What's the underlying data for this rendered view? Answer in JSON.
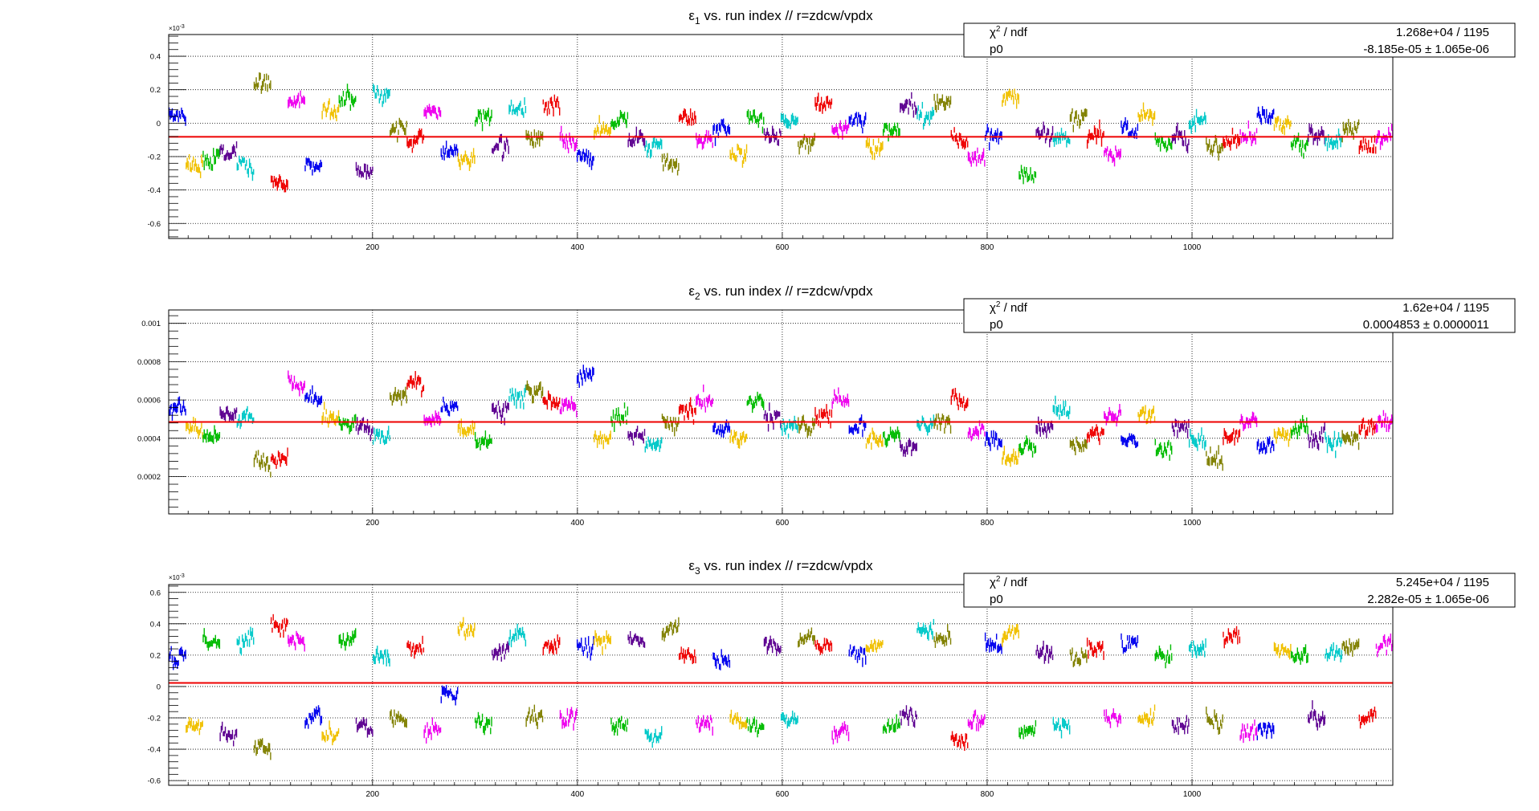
{
  "chart_data": [
    {
      "type": "scatter",
      "title_symbol": "ε",
      "title_sub": "1",
      "title_rest": " vs. run index // r=zdcw/vpdx",
      "xlim": [
        1,
        1196
      ],
      "ylim": [
        -0.00069,
        0.00053
      ],
      "y_exponent": "×10",
      "y_exponent_power": "-3",
      "x_ticks": [
        200,
        400,
        600,
        800,
        1000
      ],
      "x_tick_labels": [
        "200",
        "400",
        "600",
        "800",
        "1000"
      ],
      "y_ticks": [
        0.0004,
        0.0002,
        0,
        -0.0002,
        -0.0004,
        -0.0006
      ],
      "y_tick_labels": [
        "0.4",
        "0.2",
        "0",
        "-0.2",
        "-0.4",
        "-0.6"
      ],
      "fit_value": -8.185e-05,
      "stats": {
        "row1_label": "χ",
        "row1_label_sup": "2",
        "row1_label_rest": " / ndf",
        "row1_value": "1.268e+04 / 1195",
        "row2_label": "p0",
        "row2_value": "-8.185e-05 ± 1.065e-06"
      },
      "segment_means": [
        5e-05,
        -0.00025,
        -0.00022,
        -0.00018,
        -0.00026,
        0.00022,
        -0.00035,
        0.00012,
        -0.00025,
        8e-05,
        0.00015,
        -0.00028,
        0.00018,
        -5e-05,
        -0.00012,
        6e-05,
        -0.00018,
        -0.00022,
        2e-05,
        -0.00015,
        8e-05,
        -8e-05,
        0.0001,
        -0.0001,
        -0.0002,
        -5e-05,
        0.0,
        -0.00012,
        -0.00015,
        -0.00025,
        2e-05,
        -0.0001,
        -5e-05,
        -0.00018,
        4e-05,
        -8e-05,
        0.0,
        -0.00012,
        0.00012,
        -5e-05,
        2e-05,
        -0.00015,
        -2e-05,
        0.0001,
        6e-05,
        0.00012,
        -0.00012,
        -0.0002,
        -8e-05,
        0.00015,
        -0.0003,
        -5e-05,
        -0.0001,
        4e-05,
        -8e-05,
        -0.00018,
        -4e-05,
        6e-05,
        -0.0001,
        -8e-05,
        2e-05,
        -0.00014,
        -0.0001,
        -8e-05,
        4e-05,
        -2e-05,
        -0.00012,
        -6e-05,
        -0.0001,
        -6e-05,
        -0.00016,
        -8e-05
      ],
      "series_colors": [
        "#0000ee",
        "#f0c000",
        "#00bb00",
        "#5c0090",
        "#00c8c8",
        "#808000",
        "#ee0000",
        "#ee00ee"
      ]
    },
    {
      "type": "scatter",
      "title_symbol": "ε",
      "title_sub": "2",
      "title_rest": " vs. run index // r=zdcw/vpdx",
      "xlim": [
        1,
        1196
      ],
      "ylim": [
        5e-06,
        0.00107
      ],
      "y_exponent": "",
      "y_exponent_power": "",
      "x_ticks": [
        200,
        400,
        600,
        800,
        1000
      ],
      "x_tick_labels": [
        "200",
        "400",
        "600",
        "800",
        "1000"
      ],
      "y_ticks": [
        0.001,
        0.0008,
        0.0006,
        0.0004,
        0.0002
      ],
      "y_tick_labels": [
        "0.001",
        "0.0008",
        "0.0006",
        "0.0004",
        "0.0002"
      ],
      "fit_value": 0.0004853,
      "stats": {
        "row1_label": "χ",
        "row1_label_sup": "2",
        "row1_label_rest": " / ndf",
        "row1_value": "1.62e+04 / 1195",
        "row2_label": "p0",
        "row2_value": "0.0004853 ± 0.0000011"
      },
      "segment_means": [
        0.00055,
        0.00045,
        0.0004,
        0.00052,
        0.0005,
        0.00028,
        0.0003,
        0.0007,
        0.0006,
        0.00052,
        0.00048,
        0.00045,
        0.0004,
        0.00062,
        0.00068,
        0.0005,
        0.00055,
        0.00045,
        0.00038,
        0.00055,
        0.00062,
        0.00065,
        0.0006,
        0.00055,
        0.00072,
        0.0004,
        0.00052,
        0.0004,
        0.00035,
        0.00048,
        0.00055,
        0.0006,
        0.00045,
        0.00042,
        0.0006,
        0.0005,
        0.00045,
        0.00048,
        0.00052,
        0.0006,
        0.00045,
        0.00038,
        0.0004,
        0.00035,
        0.00048,
        0.0005,
        0.00062,
        0.00042,
        0.00038,
        0.0003,
        0.00035,
        0.00045,
        0.00055,
        0.00038,
        0.00042,
        0.0005,
        0.0004,
        0.00052,
        0.00035,
        0.00045,
        0.0004,
        0.00028,
        0.0004,
        0.00048,
        0.00035,
        0.00042,
        0.00045,
        0.0004,
        0.0004,
        0.00042,
        0.00045,
        0.00045
      ],
      "series_colors": [
        "#0000ee",
        "#f0c000",
        "#00bb00",
        "#5c0090",
        "#00c8c8",
        "#808000",
        "#ee0000",
        "#ee00ee"
      ]
    },
    {
      "type": "scatter",
      "title_symbol": "ε",
      "title_sub": "3",
      "title_rest": " vs. run index // r=zdcw/vpdx",
      "xlim": [
        1,
        1196
      ],
      "ylim": [
        -0.00063,
        0.00065
      ],
      "y_exponent": "×10",
      "y_exponent_power": "-3",
      "x_ticks": [
        200,
        400,
        600,
        800,
        1000
      ],
      "x_tick_labels": [
        "200",
        "400",
        "600",
        "800",
        "1000"
      ],
      "y_ticks": [
        0.0006,
        0.0004,
        0.0002,
        0,
        -0.0002,
        -0.0004,
        -0.0006
      ],
      "y_tick_labels": [
        "0.6",
        "0.4",
        "0.2",
        "0",
        "-0.2",
        "-0.4",
        "-0.6"
      ],
      "fit_value": 2.282e-05,
      "stats": {
        "row1_label": "χ",
        "row1_label_sup": "2",
        "row1_label_rest": " / ndf",
        "row1_value": "5.245e+04 / 1195",
        "row2_label": "p0",
        "row2_value": "2.282e-05 ± 1.065e-06"
      },
      "segment_means": [
        0.0002,
        -0.00025,
        0.0003,
        -0.00032,
        0.0003,
        -0.00038,
        0.0004,
        0.00028,
        -0.0002,
        -0.0003,
        0.0003,
        -0.00025,
        0.0002,
        -0.0002,
        0.00025,
        -0.00028,
        -5e-05,
        0.00035,
        -0.00025,
        0.0002,
        0.0003,
        -0.0002,
        0.00025,
        -0.00018,
        0.00025,
        0.0003,
        -0.00025,
        0.0003,
        -0.0003,
        0.00035,
        0.0002,
        -0.00025,
        0.00018,
        -0.00022,
        -0.00025,
        0.00025,
        -0.0002,
        0.0003,
        0.00025,
        -0.0003,
        0.0002,
        0.00025,
        -0.00025,
        -0.0002,
        0.00035,
        0.0003,
        -0.00035,
        -0.00025,
        0.00028,
        0.0003,
        -0.0003,
        0.0002,
        -0.00025,
        0.0002,
        0.00025,
        -0.0002,
        0.0003,
        -0.00022,
        0.0002,
        -0.00025,
        0.00025,
        -0.0002,
        0.0003,
        -0.0003,
        -0.00025,
        0.00025,
        0.0002,
        -0.0002,
        0.0002,
        0.00025,
        -0.0002,
        0.00025
      ],
      "series_colors": [
        "#0000ee",
        "#f0c000",
        "#00bb00",
        "#5c0090",
        "#00c8c8",
        "#808000",
        "#ee0000",
        "#ee00ee"
      ]
    }
  ]
}
